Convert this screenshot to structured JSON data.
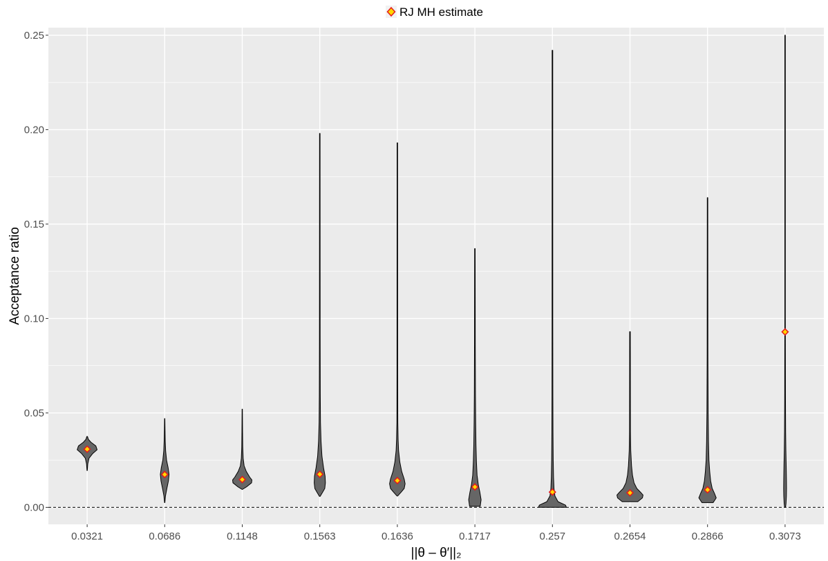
{
  "chart_data": {
    "type": "violin",
    "legend": {
      "label": "RJ MH estimate",
      "position": "top"
    },
    "xlabel": "||θ – θ′||₂",
    "ylabel": "Acceptance ratio",
    "ylim": [
      -0.009,
      0.254
    ],
    "yticks": [
      0.0,
      0.05,
      0.1,
      0.15,
      0.2,
      0.25
    ],
    "ytick_labels": [
      "0.00",
      "0.05",
      "0.10",
      "0.15",
      "0.20",
      "0.25"
    ],
    "reference_line": {
      "y": 0.0,
      "style": "dashed"
    },
    "categories": [
      "0.0321",
      "0.0686",
      "0.1148",
      "0.1563",
      "0.1636",
      "0.1717",
      "0.257",
      "0.2654",
      "0.2866",
      "0.3073"
    ],
    "estimates": [
      0.0308,
      0.0174,
      0.0147,
      0.0175,
      0.0142,
      0.0108,
      0.0081,
      0.0077,
      0.0093,
      0.0929
    ],
    "violins": [
      {
        "min": 0.0195,
        "max": 0.0375,
        "profile": [
          [
            0.0195,
            0.5
          ],
          [
            0.023,
            2
          ],
          [
            0.026,
            6
          ],
          [
            0.0285,
            18
          ],
          [
            0.0305,
            32
          ],
          [
            0.0325,
            28
          ],
          [
            0.0345,
            12
          ],
          [
            0.036,
            4
          ],
          [
            0.0375,
            1
          ]
        ]
      },
      {
        "min": 0.0025,
        "max": 0.047,
        "profile": [
          [
            0.0025,
            0.5
          ],
          [
            0.006,
            2.5
          ],
          [
            0.01,
            7
          ],
          [
            0.014,
            12
          ],
          [
            0.0175,
            14
          ],
          [
            0.021,
            11
          ],
          [
            0.025,
            6
          ],
          [
            0.03,
            3
          ],
          [
            0.035,
            1.8
          ],
          [
            0.041,
            1
          ],
          [
            0.047,
            0.5
          ]
        ]
      },
      {
        "min": 0.0095,
        "max": 0.052,
        "profile": [
          [
            0.0095,
            0.5
          ],
          [
            0.011,
            15
          ],
          [
            0.013,
            30
          ],
          [
            0.0145,
            31
          ],
          [
            0.016,
            24
          ],
          [
            0.019,
            13
          ],
          [
            0.022,
            6
          ],
          [
            0.026,
            3
          ],
          [
            0.032,
            1.6
          ],
          [
            0.04,
            1
          ],
          [
            0.052,
            0.5
          ]
        ]
      },
      {
        "min": 0.0058,
        "max": 0.198,
        "profile": [
          [
            0.0058,
            1
          ],
          [
            0.008,
            9
          ],
          [
            0.01,
            16
          ],
          [
            0.013,
            18
          ],
          [
            0.0165,
            17
          ],
          [
            0.021,
            12
          ],
          [
            0.027,
            7
          ],
          [
            0.035,
            4
          ],
          [
            0.045,
            2.2
          ],
          [
            0.06,
            1.5
          ],
          [
            0.09,
            1.1
          ],
          [
            0.198,
            0.8
          ]
        ]
      },
      {
        "min": 0.006,
        "max": 0.193,
        "profile": [
          [
            0.006,
            1
          ],
          [
            0.008,
            12
          ],
          [
            0.01,
            22
          ],
          [
            0.0125,
            25
          ],
          [
            0.015,
            22
          ],
          [
            0.019,
            14
          ],
          [
            0.024,
            8
          ],
          [
            0.03,
            4
          ],
          [
            0.036,
            2.5
          ],
          [
            0.045,
            1.5
          ],
          [
            0.07,
            1.1
          ],
          [
            0.193,
            0.8
          ]
        ]
      },
      {
        "min": 0.0005,
        "max": 0.137,
        "profile": [
          [
            0.0005,
            17
          ],
          [
            0.004,
            20
          ],
          [
            0.008,
            16
          ],
          [
            0.012,
            11
          ],
          [
            0.017,
            7
          ],
          [
            0.024,
            5
          ],
          [
            0.033,
            3.5
          ],
          [
            0.045,
            2.5
          ],
          [
            0.06,
            1.8
          ],
          [
            0.09,
            1.2
          ],
          [
            0.137,
            0.8
          ]
        ]
      },
      {
        "min": 0.0,
        "max": 0.242,
        "profile": [
          [
            0.0,
            45
          ],
          [
            0.0012,
            42
          ],
          [
            0.003,
            18
          ],
          [
            0.006,
            8
          ],
          [
            0.01,
            5
          ],
          [
            0.016,
            3.5
          ],
          [
            0.025,
            2.5
          ],
          [
            0.04,
            1.8
          ],
          [
            0.06,
            1.4
          ],
          [
            0.1,
            1.1
          ],
          [
            0.242,
            1
          ]
        ]
      },
      {
        "min": 0.003,
        "max": 0.093,
        "profile": [
          [
            0.003,
            25
          ],
          [
            0.005,
            40
          ],
          [
            0.0065,
            42
          ],
          [
            0.008,
            34
          ],
          [
            0.01,
            22
          ],
          [
            0.013,
            13
          ],
          [
            0.017,
            8
          ],
          [
            0.022,
            5
          ],
          [
            0.03,
            2.5
          ],
          [
            0.04,
            1.5
          ],
          [
            0.093,
            1
          ]
        ]
      },
      {
        "min": 0.0025,
        "max": 0.164,
        "profile": [
          [
            0.0025,
            18
          ],
          [
            0.005,
            28
          ],
          [
            0.0075,
            22
          ],
          [
            0.01,
            15
          ],
          [
            0.014,
            10
          ],
          [
            0.019,
            7
          ],
          [
            0.025,
            4.5
          ],
          [
            0.035,
            3
          ],
          [
            0.05,
            2
          ],
          [
            0.08,
            1.2
          ],
          [
            0.164,
            0.8
          ]
        ]
      },
      {
        "min": 0.0,
        "max": 0.25,
        "profile": [
          [
            0.0,
            1.5
          ],
          [
            0.002,
            3
          ],
          [
            0.006,
            4.2
          ],
          [
            0.01,
            4.6
          ],
          [
            0.015,
            4.3
          ],
          [
            0.022,
            3.6
          ],
          [
            0.03,
            2.6
          ],
          [
            0.04,
            1.8
          ],
          [
            0.06,
            1.2
          ],
          [
            0.1,
            0.8
          ],
          [
            0.25,
            0.8
          ]
        ]
      }
    ]
  }
}
